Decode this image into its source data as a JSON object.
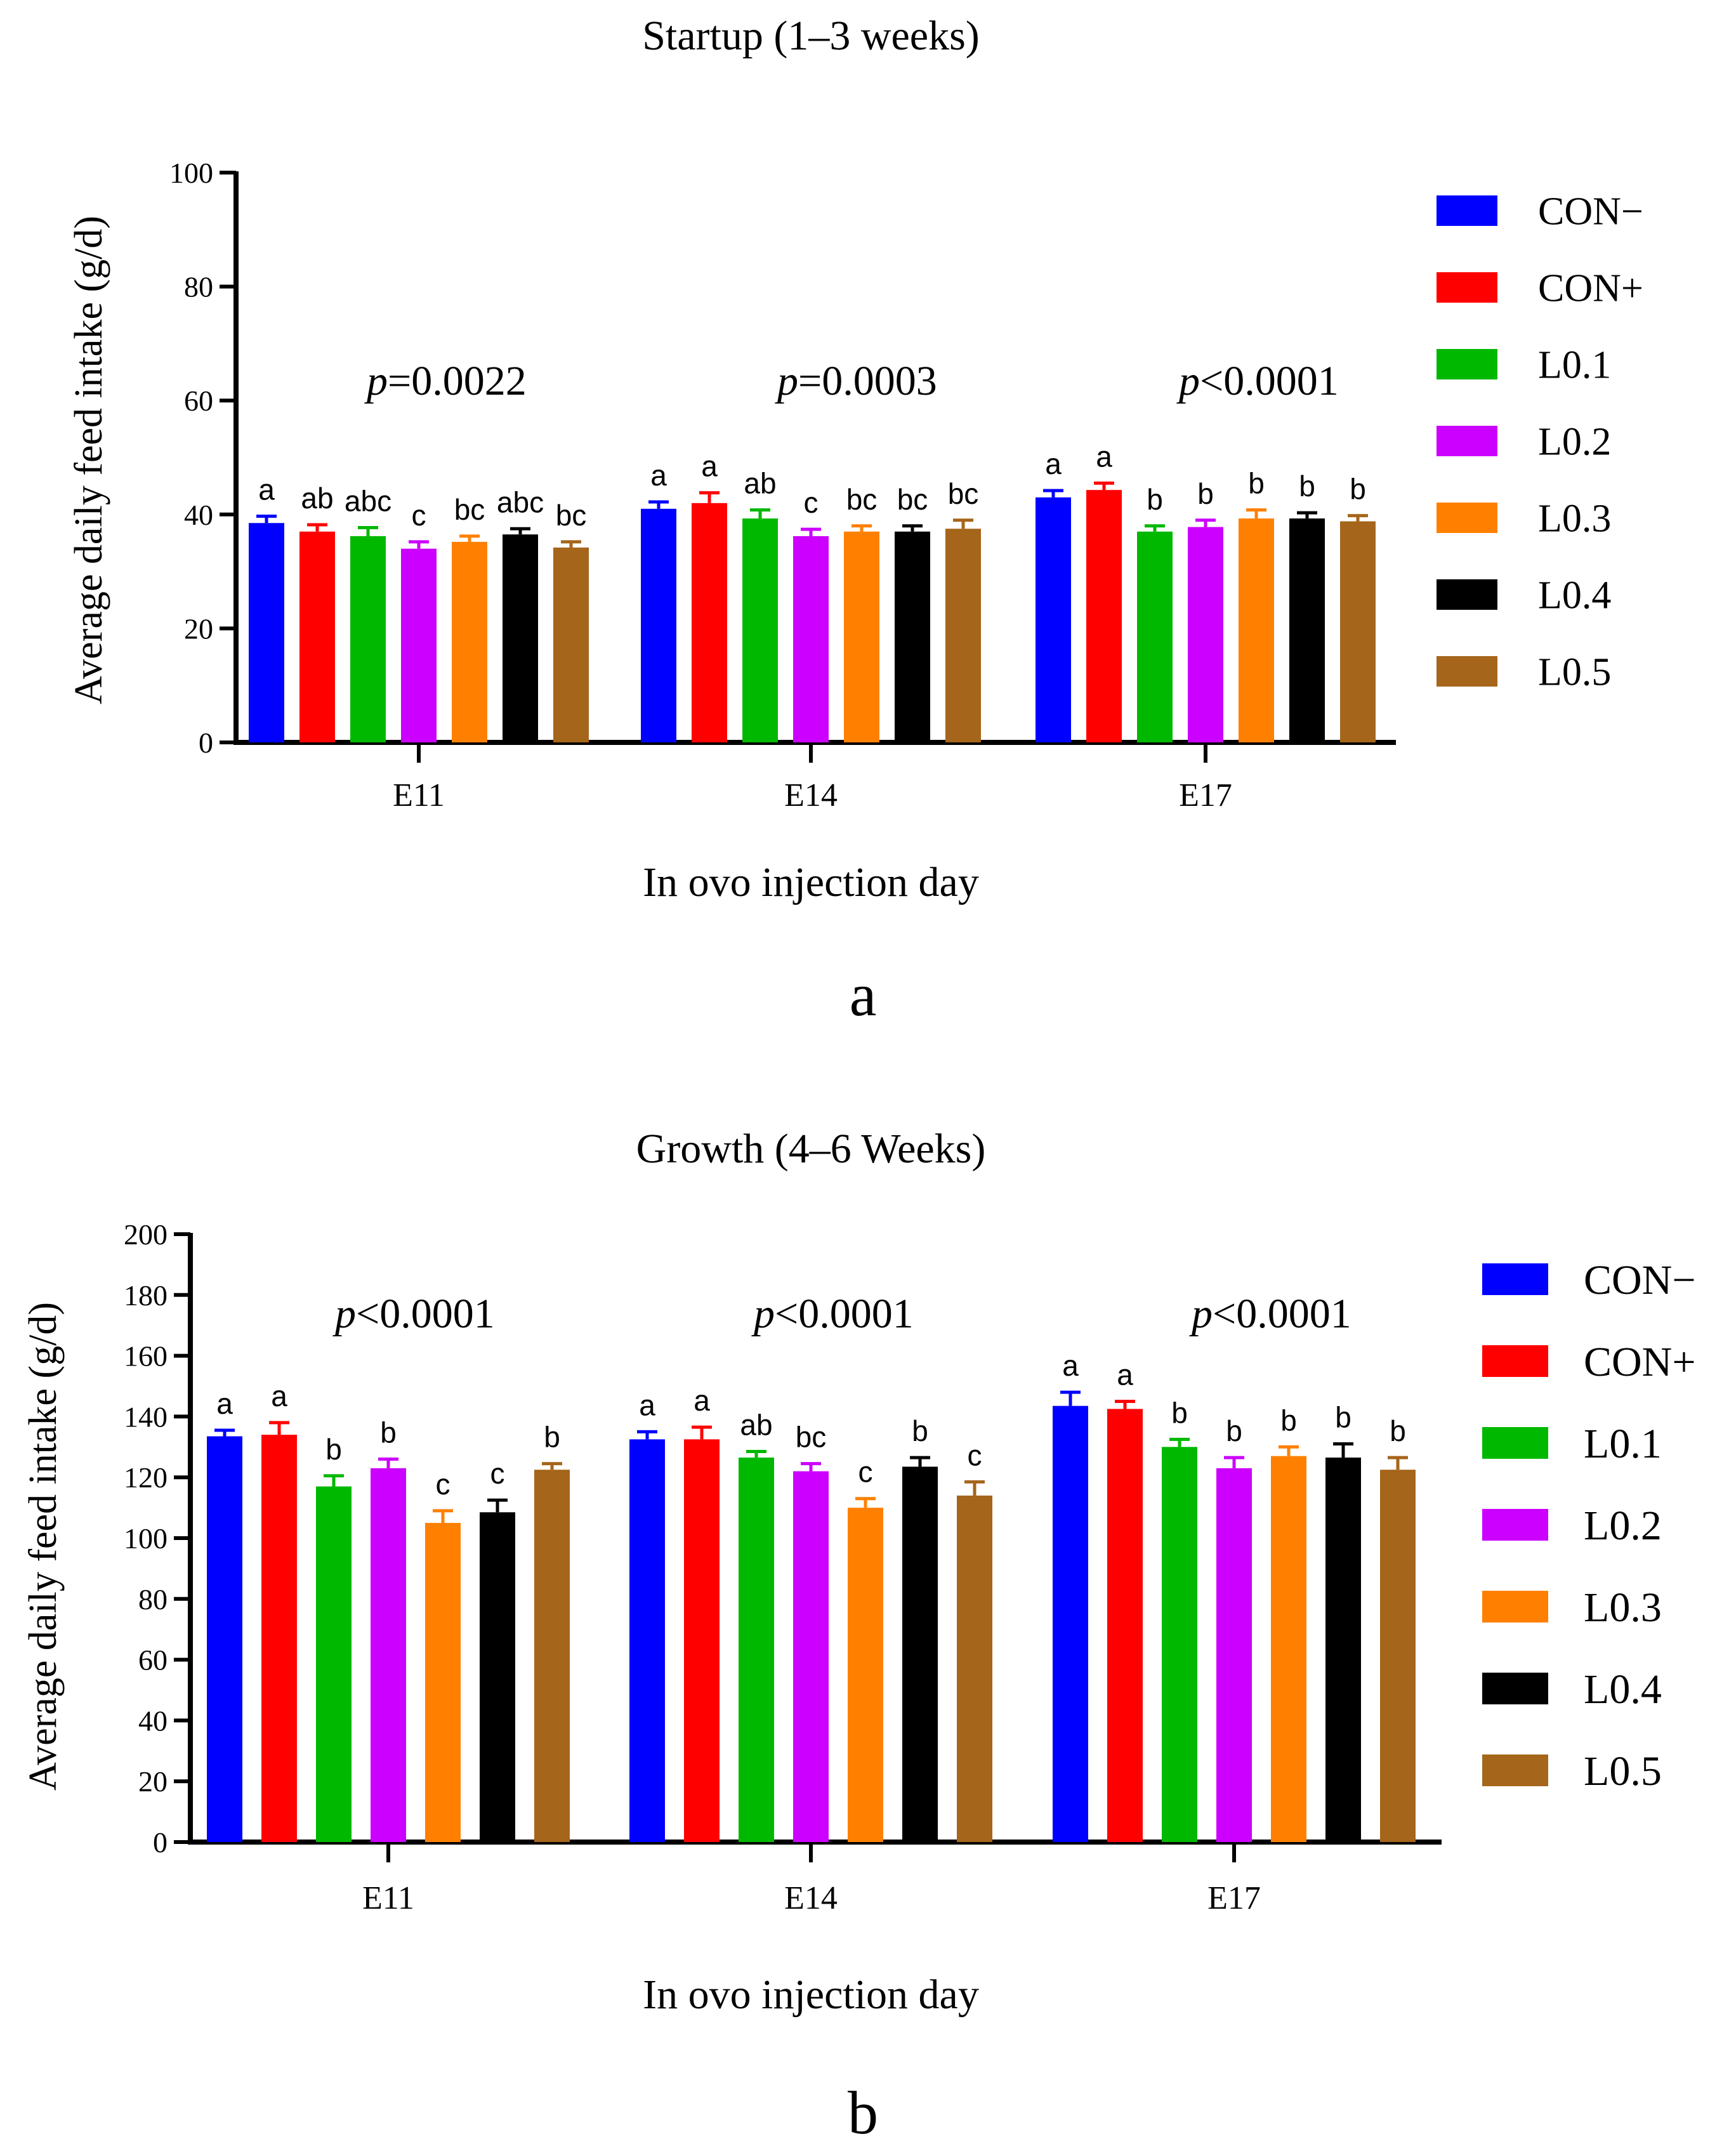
{
  "chart_data": [
    {
      "type": "bar",
      "title": "Startup (1–3 weeks)",
      "xlabel": "In ovo injection day",
      "ylabel": "Average daily feed intake (g/d)",
      "ylim": [
        0,
        100
      ],
      "yticks": [
        0,
        20,
        40,
        60,
        80,
        100
      ],
      "categories": [
        "E11",
        "E14",
        "E17"
      ],
      "panel_label": "a",
      "p_values": [
        {
          "prefix": "p",
          "text": "=0.0022"
        },
        {
          "prefix": "p",
          "text": "=0.0003"
        },
        {
          "prefix": "p",
          "text": "<0.0001"
        }
      ],
      "series": [
        {
          "name": "CON−",
          "color": "#0000ff",
          "values": [
            38.5,
            41,
            43
          ],
          "errors": [
            1.2,
            1.2,
            1.2
          ],
          "letters": [
            "a",
            "a",
            "a"
          ]
        },
        {
          "name": "CON+",
          "color": "#ff0000",
          "values": [
            37,
            42,
            44.3
          ],
          "errors": [
            1.2,
            1.8,
            1.2
          ],
          "letters": [
            "ab",
            "a",
            "a"
          ]
        },
        {
          "name": "L0.1",
          "color": "#00b800",
          "values": [
            36.2,
            39.3,
            37
          ],
          "errors": [
            1.5,
            1.5,
            1.0
          ],
          "letters": [
            "abc",
            "ab",
            "b"
          ]
        },
        {
          "name": "L0.2",
          "color": "#cc00ff",
          "values": [
            34,
            36.2,
            37.8
          ],
          "errors": [
            1.2,
            1.2,
            1.2
          ],
          "letters": [
            "c",
            "c",
            "b"
          ]
        },
        {
          "name": "L0.3",
          "color": "#ff8000",
          "values": [
            35.2,
            37,
            39.3
          ],
          "errors": [
            1.0,
            1.0,
            1.5
          ],
          "letters": [
            "bc",
            "bc",
            "b"
          ]
        },
        {
          "name": "L0.4",
          "color": "#000000",
          "values": [
            36.5,
            37,
            39.3
          ],
          "errors": [
            1.0,
            1.0,
            1.0
          ],
          "letters": [
            "abc",
            "bc",
            "b"
          ]
        },
        {
          "name": "L0.5",
          "color": "#a5651a",
          "values": [
            34.2,
            37.5,
            38.8
          ],
          "errors": [
            1.0,
            1.5,
            1.0
          ],
          "letters": [
            "bc",
            "bc",
            "b"
          ]
        }
      ]
    },
    {
      "type": "bar",
      "title": "Growth (4–6 Weeks)",
      "xlabel": "In ovo injection day",
      "ylabel": "Average daily feed intake (g/d)",
      "ylim": [
        0,
        200
      ],
      "yticks": [
        0,
        20,
        40,
        60,
        80,
        100,
        120,
        140,
        160,
        180,
        200
      ],
      "categories": [
        "E11",
        "E14",
        "E17"
      ],
      "panel_label": "b",
      "p_values": [
        {
          "prefix": "p",
          "text": "<0.0001"
        },
        {
          "prefix": "p",
          "text": "<0.0001"
        },
        {
          "prefix": "p",
          "text": "<0.0001"
        }
      ],
      "series": [
        {
          "name": "CON−",
          "color": "#0000ff",
          "values": [
            133.5,
            132.5,
            143.5
          ],
          "errors": [
            2,
            2.5,
            4.5
          ],
          "letters": [
            "a",
            "a",
            "a"
          ]
        },
        {
          "name": "CON+",
          "color": "#ff0000",
          "values": [
            134,
            132.5,
            142.5
          ],
          "errors": [
            4,
            4,
            2.5
          ],
          "letters": [
            "a",
            "a",
            "a"
          ]
        },
        {
          "name": "L0.1",
          "color": "#00b800",
          "values": [
            117,
            126.5,
            130
          ],
          "errors": [
            3.5,
            2,
            2.5
          ],
          "letters": [
            "b",
            "ab",
            "b"
          ]
        },
        {
          "name": "L0.2",
          "color": "#cc00ff",
          "values": [
            123,
            122,
            123
          ],
          "errors": [
            3,
            2.5,
            3.5
          ],
          "letters": [
            "b",
            "bc",
            "b"
          ]
        },
        {
          "name": "L0.3",
          "color": "#ff8000",
          "values": [
            105,
            110,
            127
          ],
          "errors": [
            4,
            3,
            3
          ],
          "letters": [
            "c",
            "c",
            "b"
          ]
        },
        {
          "name": "L0.4",
          "color": "#000000",
          "values": [
            108.5,
            123.5,
            126.5
          ],
          "errors": [
            4,
            3,
            4.5
          ],
          "letters": [
            "c",
            "b",
            "b"
          ]
        },
        {
          "name": "L0.5",
          "color": "#a5651a",
          "values": [
            122.5,
            114,
            122.5
          ],
          "errors": [
            2,
            4.5,
            4
          ],
          "letters": [
            "b",
            "c",
            "b"
          ]
        }
      ]
    }
  ]
}
